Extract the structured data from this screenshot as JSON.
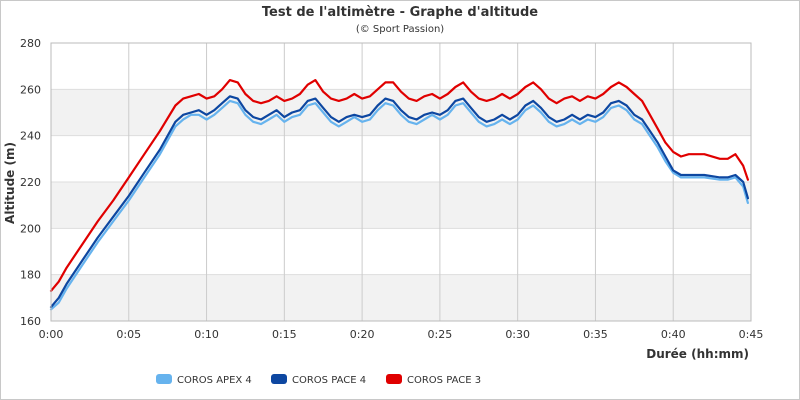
{
  "chart_data": {
    "type": "line",
    "title": "Test de l'altimètre - Graphe d'altitude",
    "subtitle": "(© Sport Passion)",
    "xlabel": "Durée (hh:mm)",
    "ylabel": "Altitude (m)",
    "x_unit": "minutes",
    "xlim": [
      0,
      45
    ],
    "ylim": [
      160,
      280
    ],
    "x_ticks": [
      0,
      5,
      10,
      15,
      20,
      25,
      30,
      35,
      40,
      45
    ],
    "x_tick_labels": [
      "0:00",
      "0:05",
      "0:10",
      "0:15",
      "0:20",
      "0:25",
      "0:30",
      "0:35",
      "0:40",
      "0:45"
    ],
    "y_ticks": [
      160,
      180,
      200,
      220,
      240,
      260,
      280
    ],
    "y_tick_labels": [
      "160",
      "180",
      "200",
      "220",
      "240",
      "260",
      "280"
    ],
    "grid": true,
    "banded_background": true,
    "legend_position": "bottom-left",
    "series": [
      {
        "name": "COROS APEX 4",
        "color": "#66b3ee",
        "x": [
          0,
          0.5,
          1,
          2,
          3,
          4,
          5,
          6,
          7,
          8,
          8.5,
          9,
          9.5,
          10,
          10.5,
          11,
          11.5,
          12,
          12.5,
          13,
          13.5,
          14,
          14.5,
          15,
          15.5,
          16,
          16.5,
          17,
          17.5,
          18,
          18.5,
          19,
          19.5,
          20,
          20.5,
          21,
          21.5,
          22,
          22.5,
          23,
          23.5,
          24,
          24.5,
          25,
          25.5,
          26,
          26.5,
          27,
          27.5,
          28,
          28.5,
          29,
          29.5,
          30,
          30.5,
          31,
          31.5,
          32,
          32.5,
          33,
          33.5,
          34,
          34.5,
          35,
          35.5,
          36,
          36.5,
          37,
          37.5,
          38,
          38.5,
          39,
          39.5,
          40,
          40.5,
          41,
          42,
          43,
          43.5,
          44,
          44.5,
          44.8
        ],
        "values": [
          165,
          168,
          174,
          184,
          194,
          203,
          212,
          222,
          232,
          244,
          247,
          249,
          249,
          247,
          249,
          252,
          255,
          254,
          249,
          246,
          245,
          247,
          249,
          246,
          248,
          249,
          253,
          254,
          250,
          246,
          244,
          246,
          248,
          246,
          247,
          251,
          254,
          253,
          249,
          246,
          245,
          247,
          249,
          247,
          249,
          253,
          254,
          250,
          246,
          244,
          245,
          247,
          245,
          247,
          251,
          253,
          250,
          246,
          244,
          245,
          247,
          245,
          247,
          246,
          248,
          252,
          253,
          251,
          247,
          245,
          240,
          235,
          229,
          224,
          222,
          222,
          222,
          221,
          221,
          222,
          218,
          211
        ]
      },
      {
        "name": "COROS PACE 4",
        "color": "#0d47a1",
        "x": [
          0,
          0.5,
          1,
          2,
          3,
          4,
          5,
          6,
          7,
          8,
          8.5,
          9,
          9.5,
          10,
          10.5,
          11,
          11.5,
          12,
          12.5,
          13,
          13.5,
          14,
          14.5,
          15,
          15.5,
          16,
          16.5,
          17,
          17.5,
          18,
          18.5,
          19,
          19.5,
          20,
          20.5,
          21,
          21.5,
          22,
          22.5,
          23,
          23.5,
          24,
          24.5,
          25,
          25.5,
          26,
          26.5,
          27,
          27.5,
          28,
          28.5,
          29,
          29.5,
          30,
          30.5,
          31,
          31.5,
          32,
          32.5,
          33,
          33.5,
          34,
          34.5,
          35,
          35.5,
          36,
          36.5,
          37,
          37.5,
          38,
          38.5,
          39,
          39.5,
          40,
          40.5,
          41,
          42,
          43,
          43.5,
          44,
          44.5,
          44.8
        ],
        "values": [
          166,
          170,
          176,
          186,
          196,
          205,
          214,
          224,
          234,
          246,
          249,
          250,
          251,
          249,
          251,
          254,
          257,
          256,
          251,
          248,
          247,
          249,
          251,
          248,
          250,
          251,
          255,
          256,
          252,
          248,
          246,
          248,
          249,
          248,
          249,
          253,
          256,
          255,
          251,
          248,
          247,
          249,
          250,
          249,
          251,
          255,
          256,
          252,
          248,
          246,
          247,
          249,
          247,
          249,
          253,
          255,
          252,
          248,
          246,
          247,
          249,
          247,
          249,
          248,
          250,
          254,
          255,
          253,
          249,
          247,
          242,
          237,
          231,
          225,
          223,
          223,
          223,
          222,
          222,
          223,
          220,
          213
        ]
      },
      {
        "name": "COROS PACE 3",
        "color": "#e00000",
        "x": [
          0,
          0.5,
          1,
          2,
          3,
          4,
          5,
          6,
          7,
          8,
          8.5,
          9,
          9.5,
          10,
          10.5,
          11,
          11.5,
          12,
          12.5,
          13,
          13.5,
          14,
          14.5,
          15,
          15.5,
          16,
          16.5,
          17,
          17.5,
          18,
          18.5,
          19,
          19.5,
          20,
          20.5,
          21,
          21.5,
          22,
          22.5,
          23,
          23.5,
          24,
          24.5,
          25,
          25.5,
          26,
          26.5,
          27,
          27.5,
          28,
          28.5,
          29,
          29.5,
          30,
          30.5,
          31,
          31.5,
          32,
          32.5,
          33,
          33.5,
          34,
          34.5,
          35,
          35.5,
          36,
          36.5,
          37,
          37.5,
          38,
          38.5,
          39,
          39.5,
          40,
          40.5,
          41,
          42,
          43,
          43.5,
          44,
          44.5,
          44.8
        ],
        "values": [
          173,
          177,
          183,
          193,
          203,
          212,
          222,
          232,
          242,
          253,
          256,
          257,
          258,
          256,
          257,
          260,
          264,
          263,
          258,
          255,
          254,
          255,
          257,
          255,
          256,
          258,
          262,
          264,
          259,
          256,
          255,
          256,
          258,
          256,
          257,
          260,
          263,
          263,
          259,
          256,
          255,
          257,
          258,
          256,
          258,
          261,
          263,
          259,
          256,
          255,
          256,
          258,
          256,
          258,
          261,
          263,
          260,
          256,
          254,
          256,
          257,
          255,
          257,
          256,
          258,
          261,
          263,
          261,
          258,
          255,
          249,
          243,
          237,
          233,
          231,
          232,
          232,
          230,
          230,
          232,
          227,
          221
        ]
      }
    ]
  }
}
